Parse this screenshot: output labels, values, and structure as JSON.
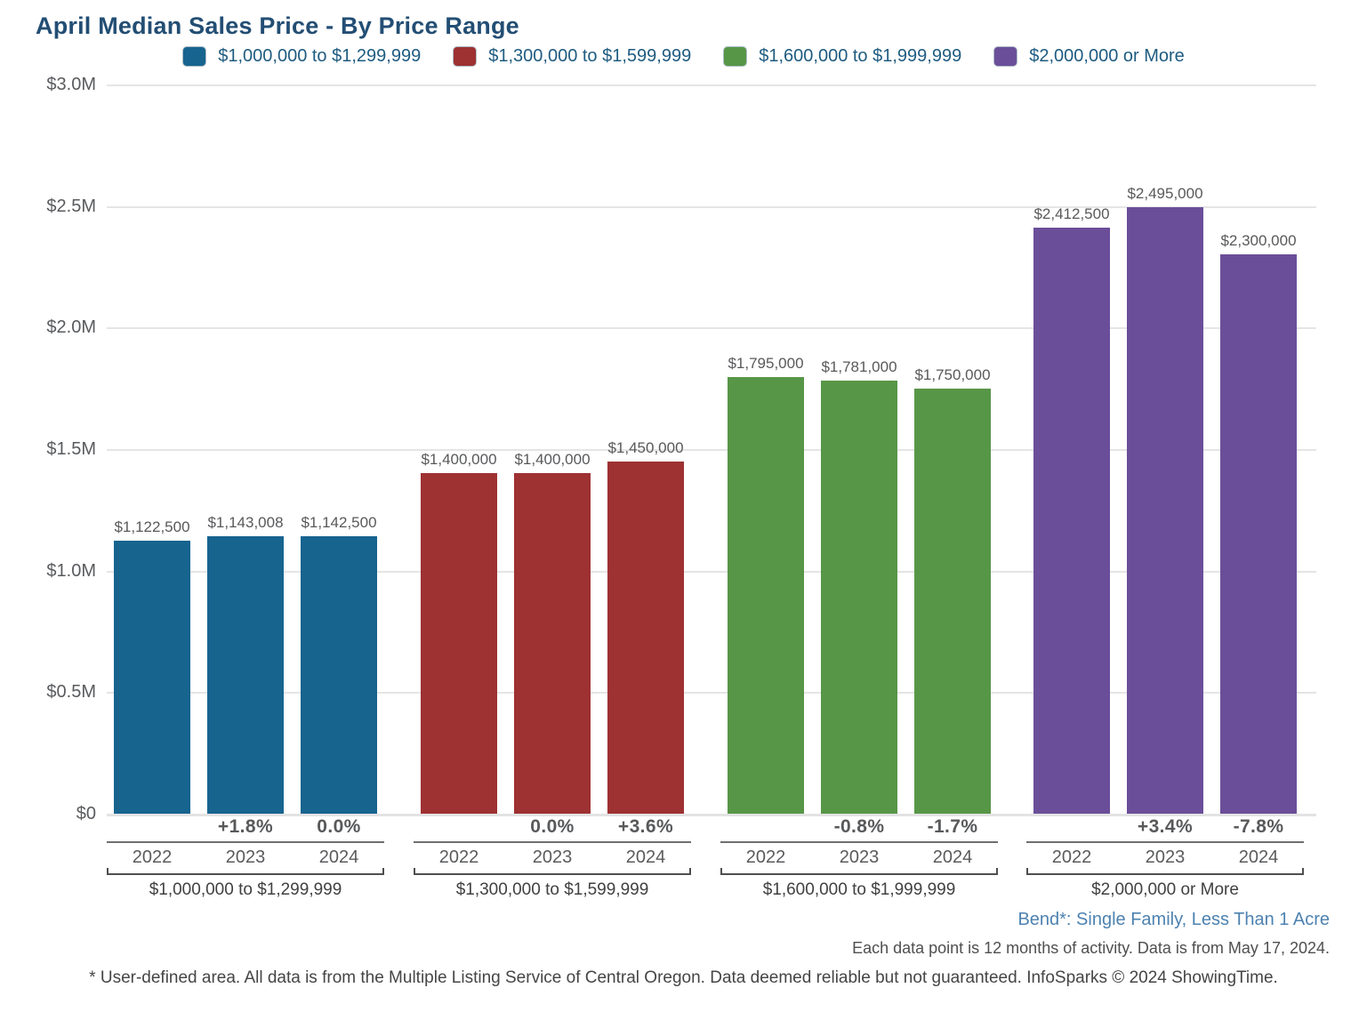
{
  "title": "April Median Sales Price - By Price Range",
  "legend": {
    "items": [
      {
        "label": "$1,000,000 to $1,299,999",
        "color": "#17648F"
      },
      {
        "label": "$1,300,000 to $1,599,999",
        "color": "#9E3132"
      },
      {
        "label": "$1,600,000 to $1,999,999",
        "color": "#579647"
      },
      {
        "label": "$2,000,000 or More",
        "color": "#6B4E99"
      }
    ]
  },
  "chart_data": {
    "type": "bar",
    "title": "April Median Sales Price - By Price Range",
    "unit": "USD",
    "xlabel": "",
    "ylabel": "",
    "ylim": [
      0,
      3000000
    ],
    "grid": true,
    "legend_position": "top",
    "y_ticks": [
      {
        "value": 3000000,
        "label": "$3.0M"
      },
      {
        "value": 2500000,
        "label": "$2.5M"
      },
      {
        "value": 2000000,
        "label": "$2.0M"
      },
      {
        "value": 1500000,
        "label": "$1.5M"
      },
      {
        "value": 1000000,
        "label": "$1.0M"
      },
      {
        "value": 500000,
        "label": "$0.5M"
      },
      {
        "value": 0,
        "label": "$0"
      }
    ],
    "x_years": [
      "2022",
      "2023",
      "2024"
    ],
    "groups": [
      {
        "label": "$1,000,000 to $1,299,999",
        "color": "#17648F",
        "years": [
          "2022",
          "2023",
          "2024"
        ],
        "values": [
          1122500,
          1143008,
          1142500
        ],
        "value_labels": [
          "$1,122,500",
          "$1,143,008",
          "$1,142,500"
        ],
        "pct_change": [
          "",
          "+1.8%",
          "0.0%"
        ]
      },
      {
        "label": "$1,300,000 to $1,599,999",
        "color": "#9E3132",
        "years": [
          "2022",
          "2023",
          "2024"
        ],
        "values": [
          1400000,
          1400000,
          1450000
        ],
        "value_labels": [
          "$1,400,000",
          "$1,400,000",
          "$1,450,000"
        ],
        "pct_change": [
          "",
          "0.0%",
          "+3.6%"
        ]
      },
      {
        "label": "$1,600,000 to $1,999,999",
        "color": "#579647",
        "years": [
          "2022",
          "2023",
          "2024"
        ],
        "values": [
          1795000,
          1781000,
          1750000
        ],
        "value_labels": [
          "$1,795,000",
          "$1,781,000",
          "$1,750,000"
        ],
        "pct_change": [
          "",
          "-0.8%",
          "-1.7%"
        ]
      },
      {
        "label": "$2,000,000 or More",
        "color": "#6B4E99",
        "years": [
          "2022",
          "2023",
          "2024"
        ],
        "values": [
          2412500,
          2495000,
          2300000
        ],
        "value_labels": [
          "$2,412,500",
          "$2,495,000",
          "$2,300,000"
        ],
        "pct_change": [
          "",
          "+3.4%",
          "-7.8%"
        ]
      }
    ]
  },
  "footnotes": {
    "location": "Bend*: Single Family, Less Than 1 Acre",
    "data_note": "Each data point is 12 months of activity. Data is from May 17, 2024.",
    "disclaimer": "* User-defined area. All data is from the Multiple Listing Service of Central Oregon. Data deemed reliable but not guaranteed. InfoSparks © 2024 ShowingTime."
  }
}
